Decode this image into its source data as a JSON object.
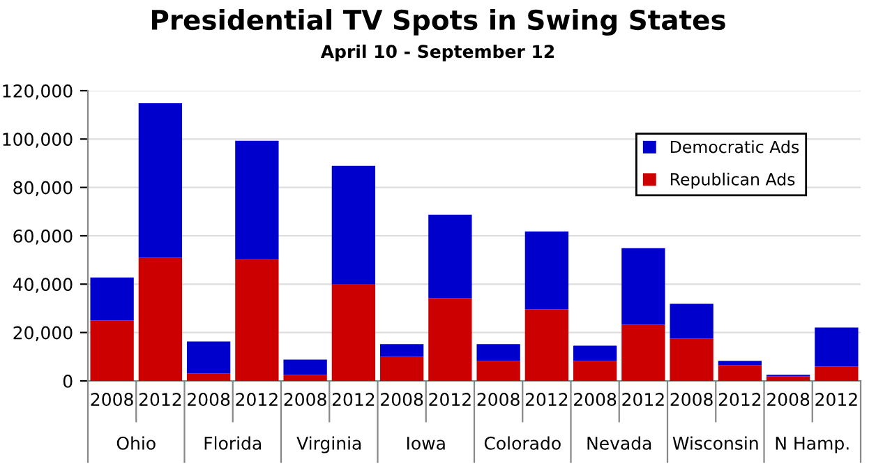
{
  "chart_data": {
    "type": "bar",
    "title": "Presidential TV Spots in Swing States",
    "subtitle": "April 10 - September 12",
    "categories": [
      "2008",
      "2012",
      "2008",
      "2012",
      "2008",
      "2012",
      "2008",
      "2012",
      "2008",
      "2012",
      "2008",
      "2012",
      "2008",
      "2012",
      "2008",
      "2012"
    ],
    "annotations": [
      "Ohio",
      "Florida",
      "Virginia",
      "Iowa",
      "Colorado",
      "Nevada",
      "Wisconsin",
      "N Hamp."
    ],
    "stacked": true,
    "series": [
      {
        "name": "Republican Ads",
        "color": "#cc0000",
        "values": [
          25000,
          50900,
          3100,
          50300,
          2500,
          39900,
          10000,
          34200,
          8300,
          29600,
          8300,
          23200,
          17500,
          6500,
          1900,
          6000
        ]
      },
      {
        "name": "Democratic Ads",
        "color": "#0000cc",
        "values": [
          17800,
          63900,
          13200,
          49000,
          6300,
          49000,
          5200,
          34500,
          6900,
          32200,
          6300,
          31700,
          14400,
          1800,
          600,
          16100
        ]
      }
    ],
    "ylim": [
      0,
      120000
    ],
    "yticks": [
      {
        "value": 0,
        "label": "0"
      },
      {
        "value": 20000,
        "label": "20,000"
      },
      {
        "value": 40000,
        "label": "40,000"
      },
      {
        "value": 60000,
        "label": "60,000"
      },
      {
        "value": 80000,
        "label": "80,000"
      },
      {
        "value": 100000,
        "label": "100,000"
      },
      {
        "value": 120000,
        "label": "120,000"
      }
    ],
    "grid": "y",
    "legend": "top right"
  }
}
